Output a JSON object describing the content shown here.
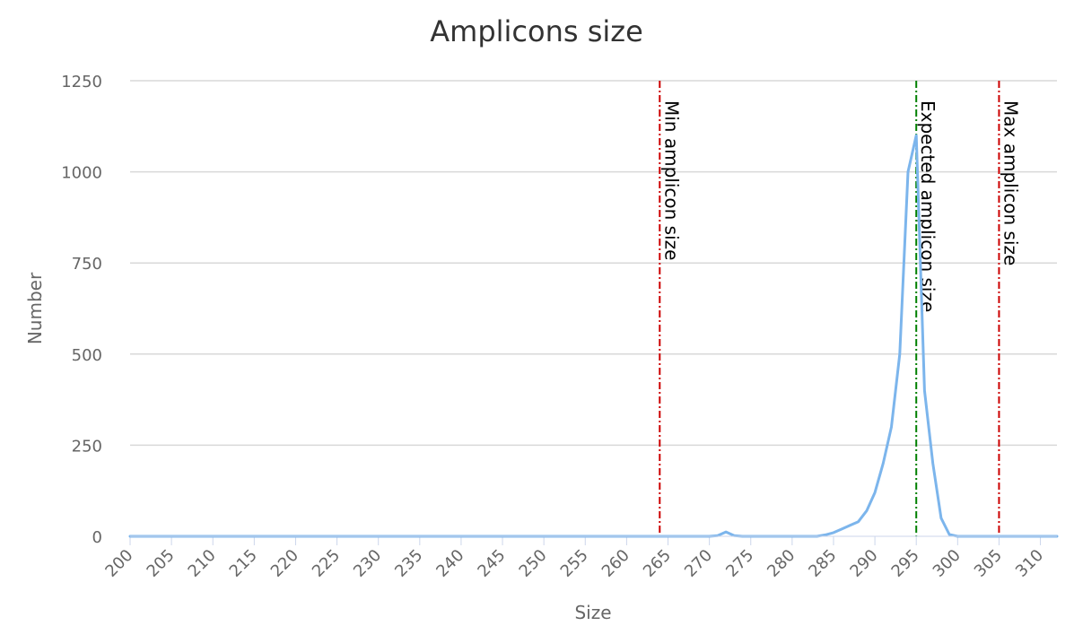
{
  "chart_data": {
    "type": "line",
    "title": "Amplicons size",
    "xlabel": "Size",
    "ylabel": "Number",
    "xlim": [
      200,
      312
    ],
    "ylim": [
      0,
      1250
    ],
    "x_ticks": [
      200,
      205,
      210,
      215,
      220,
      225,
      230,
      235,
      240,
      245,
      250,
      255,
      260,
      265,
      270,
      275,
      280,
      285,
      290,
      295,
      300,
      305,
      310
    ],
    "y_ticks": [
      0,
      250,
      500,
      750,
      1000,
      1250
    ],
    "grid": true,
    "series": [
      {
        "color": "#7cb5ec",
        "x": [
          200,
          270,
          271,
          272,
          273,
          274,
          283,
          284,
          285,
          286,
          287,
          288,
          289,
          290,
          291,
          292,
          293,
          294,
          295,
          296,
          297,
          298,
          299,
          300,
          312
        ],
        "y": [
          0,
          0,
          2,
          12,
          2,
          0,
          0,
          4,
          10,
          20,
          30,
          40,
          70,
          120,
          200,
          300,
          500,
          1000,
          1100,
          400,
          200,
          50,
          5,
          0,
          0
        ]
      }
    ],
    "plot_lines": [
      {
        "value": 264,
        "label": "Min amplicon size",
        "color": "#cc0000"
      },
      {
        "value": 295,
        "label": "Expected amplicon size",
        "color": "#008000"
      },
      {
        "value": 305,
        "label": "Max amplicon size",
        "color": "#cc0000"
      }
    ]
  }
}
